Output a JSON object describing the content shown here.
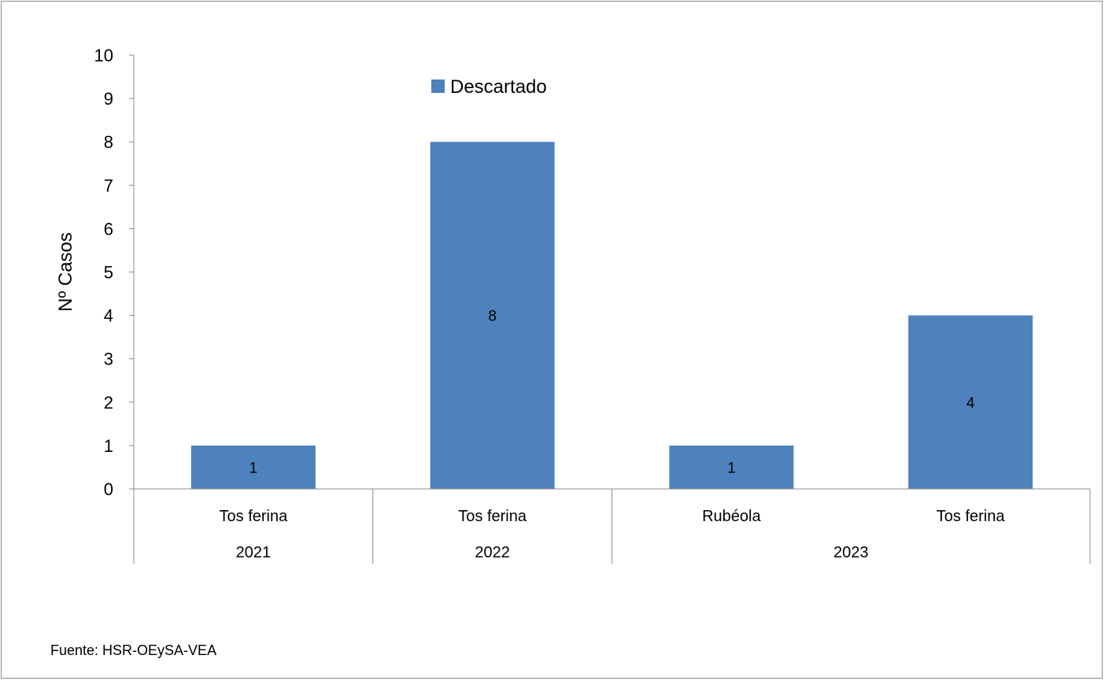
{
  "chart_data": {
    "type": "bar",
    "categories": [
      {
        "label": "Tos ferina",
        "group": "2021"
      },
      {
        "label": "Tos ferina",
        "group": "2022"
      },
      {
        "label": "Rubéola",
        "group": "2023"
      },
      {
        "label": "Tos ferina",
        "group": "2023"
      }
    ],
    "groups": [
      "2021",
      "2022",
      "2023"
    ],
    "series": [
      {
        "name": "Descartado",
        "values": [
          1,
          8,
          1,
          4
        ],
        "color": "#4f81bd"
      }
    ],
    "data_labels": [
      "1",
      "8",
      "1",
      "4"
    ],
    "ylabel": "Nº Casos",
    "ylim": [
      0,
      10
    ],
    "yticks": [
      "0",
      "1",
      "2",
      "3",
      "4",
      "5",
      "6",
      "7",
      "8",
      "9",
      "10"
    ],
    "grid": false,
    "legend_position": "top"
  },
  "source_note": "Fuente: HSR-OEySA-VEA"
}
